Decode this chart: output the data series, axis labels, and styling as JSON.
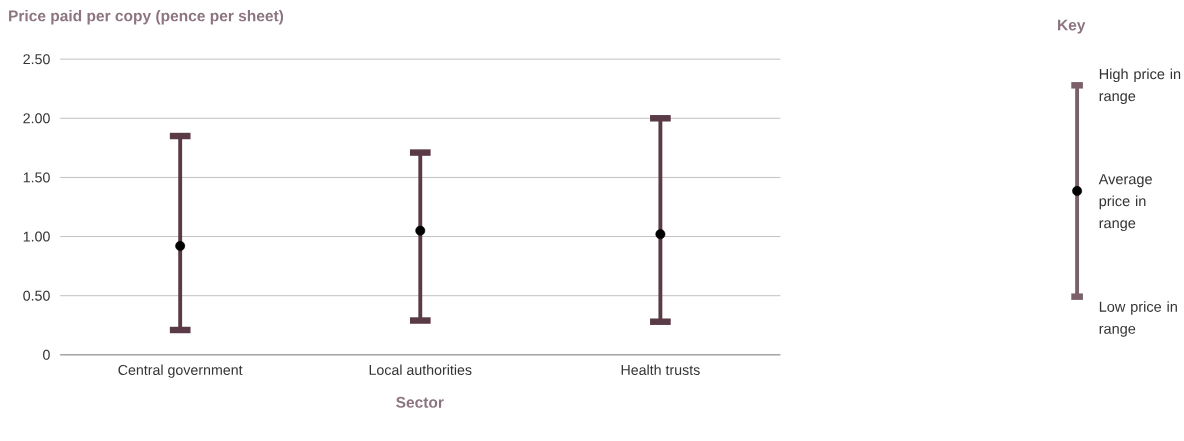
{
  "chart_data": {
    "type": "scatter",
    "ylabel": "Price paid per copy (pence per sheet)",
    "xlabel": "Sector",
    "legend_title": "Key",
    "annotations": [
      "High price in range",
      "Average price in range",
      "Low price in range"
    ],
    "categories": [
      "Central government",
      "Local authorities",
      "Health trusts"
    ],
    "values": [
      0.92,
      1.05,
      1.02
    ],
    "errors": [
      [
        0.21,
        1.85
      ],
      [
        0.29,
        1.71
      ],
      [
        0.28,
        2.0
      ]
    ],
    "color": "#000000",
    "marker": "circle",
    "ylim": [
      0,
      2.5
    ],
    "yticks": [
      0,
      {
        "value": 0.5,
        "label": "0.50"
      },
      {
        "value": 1,
        "label": "1.00"
      },
      {
        "value": 1.5,
        "label": "1.50"
      },
      {
        "value": 2,
        "label": "2.00"
      },
      {
        "value": 2.5,
        "label": "2.50"
      }
    ],
    "grid": "y"
  }
}
